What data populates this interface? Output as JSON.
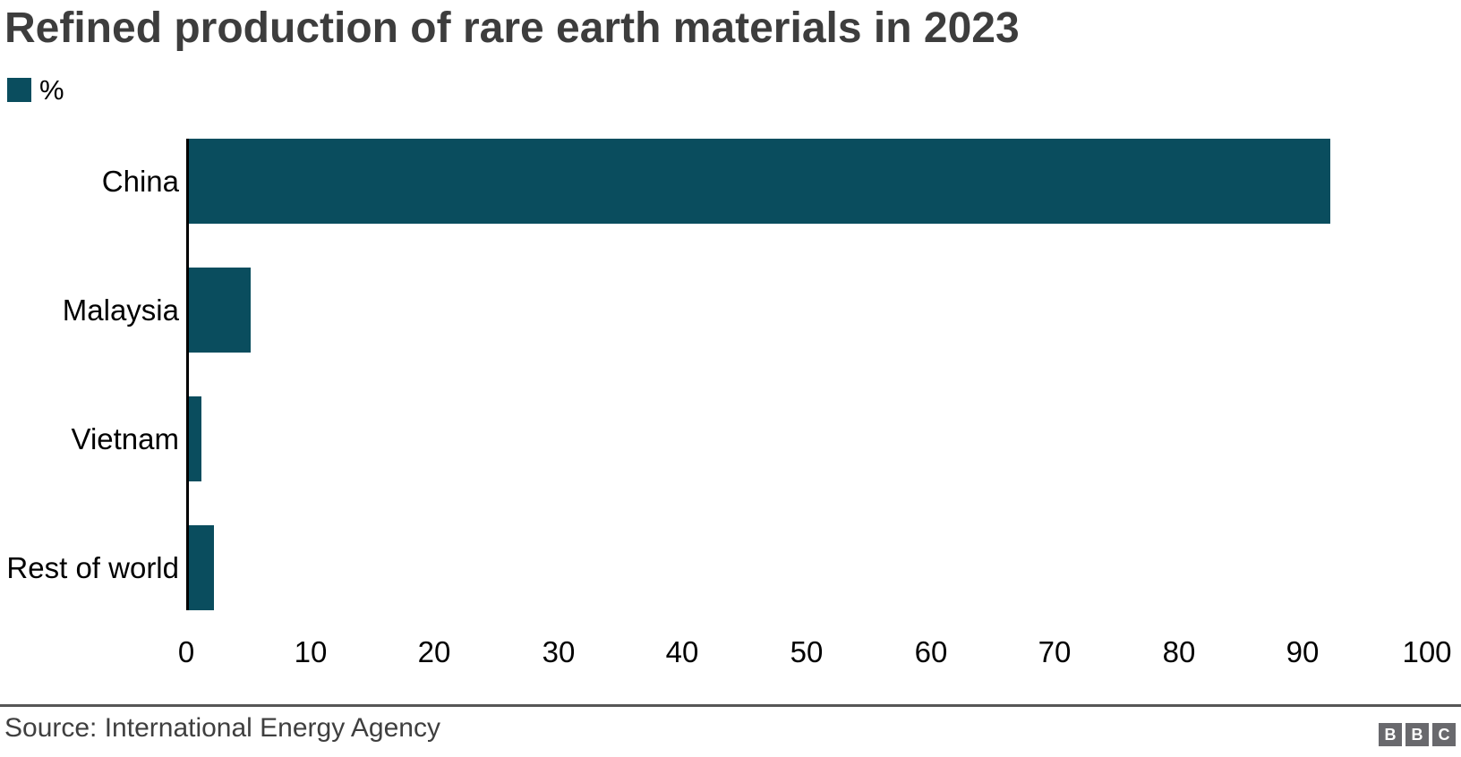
{
  "header": {
    "title": "Refined production of rare earth materials in 2023",
    "legend": {
      "label": "%",
      "swatch_color": "#0a4d5e"
    }
  },
  "chart_data": {
    "type": "bar",
    "orientation": "horizontal",
    "title": "Refined production of rare earth materials in 2023",
    "categories": [
      "China",
      "Malaysia",
      "Vietnam",
      "Rest of world"
    ],
    "values": [
      92,
      5,
      1,
      2
    ],
    "unit": "%",
    "xlabel": "",
    "ylabel": "",
    "xlim": [
      0,
      100
    ],
    "xticks": [
      "0",
      "10",
      "20",
      "30",
      "40",
      "50",
      "60",
      "70",
      "80",
      "90",
      "100"
    ],
    "grid": false,
    "legend_position": "top-left",
    "legend_entries": [
      "%"
    ],
    "bar_color": "#0a4d5e",
    "axis_line_color": "#000000"
  },
  "footer": {
    "source": "Source: International Energy Agency",
    "logo_letters": [
      "B",
      "B",
      "C"
    ]
  },
  "colors": {
    "bar_teal": "#0a4d5e",
    "title_gray": "#3d3d3d",
    "logo_gray": "#69696d",
    "divider_gray": "#565656"
  }
}
